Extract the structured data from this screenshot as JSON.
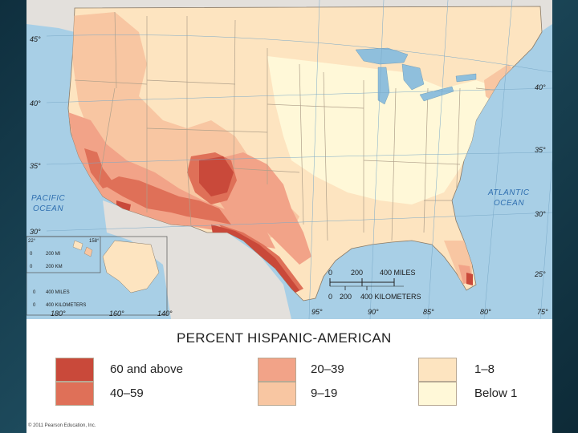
{
  "colors": {
    "ocean": "#a8cfe6",
    "lake": "#8fbfdc",
    "neighbor_land": "#e3e0dc",
    "state_border": "#b0a08a",
    "class_60_above": "#c9493a",
    "class_40_59": "#df7058",
    "class_20_39": "#f2a388",
    "class_9_19": "#f8c6a2",
    "class_1_8": "#fde4c0",
    "class_below_1": "#fff8d8"
  },
  "map": {
    "ocean_left": "PACIFIC",
    "ocean_left_2": "OCEAN",
    "ocean_right": "ATLANTIC",
    "ocean_right_2": "OCEAN",
    "latitude_labels_left": [
      "45°",
      "40°",
      "35°",
      "30°"
    ],
    "latitude_labels_right": [
      "40°",
      "35°",
      "30°",
      "25°"
    ],
    "longitude_labels": [
      "95°",
      "90°",
      "85°",
      "80°",
      "75°"
    ],
    "scale": {
      "miles_ticks": [
        "0",
        "200",
        "400 MILES"
      ],
      "km_ticks": [
        "0",
        "200",
        "400 KILOMETERS"
      ]
    },
    "hawaii_inset": {
      "lat": "22°",
      "lon": "158°",
      "miles": "200 MI",
      "km": "200 KM",
      "zero_mi": "0",
      "zero_km": "0"
    },
    "alaska_inset": {
      "miles": "400 MILES",
      "km": "400 KILOMETERS",
      "zero_mi": "0",
      "zero_km": "0",
      "lon_labels": [
        "180°",
        "160°",
        "140°"
      ]
    }
  },
  "legend": {
    "title": "PERCENT HISPANIC-AMERICAN",
    "classes": [
      {
        "label": "60 and above"
      },
      {
        "label": "40–59"
      },
      {
        "label": "20–39"
      },
      {
        "label": "9–19"
      },
      {
        "label": "1–8"
      },
      {
        "label": "Below 1"
      }
    ]
  },
  "copyright": "© 2011 Pearson Education, Inc."
}
